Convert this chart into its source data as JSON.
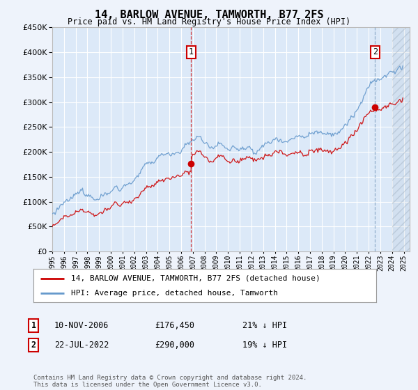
{
  "title": "14, BARLOW AVENUE, TAMWORTH, B77 2FS",
  "subtitle": "Price paid vs. HM Land Registry's House Price Index (HPI)",
  "background_color": "#eef3fb",
  "plot_bg_color": "#dce9f8",
  "grid_color": "#c8d8ec",
  "red_line_color": "#cc0000",
  "blue_line_color": "#6699cc",
  "ylim": [
    0,
    450000
  ],
  "yticks": [
    0,
    50000,
    100000,
    150000,
    200000,
    250000,
    300000,
    350000,
    400000,
    450000
  ],
  "sale1": {
    "year_float": 2006.85,
    "price": 176450,
    "label": "1"
  },
  "sale2": {
    "year_float": 2022.54,
    "price": 290000,
    "label": "2"
  },
  "legend1": "14, BARLOW AVENUE, TAMWORTH, B77 2FS (detached house)",
  "legend2": "HPI: Average price, detached house, Tamworth",
  "footer": "Contains HM Land Registry data © Crown copyright and database right 2024.\nThis data is licensed under the Open Government Licence v3.0.",
  "x_start_year": 1995,
  "x_end_year": 2025
}
